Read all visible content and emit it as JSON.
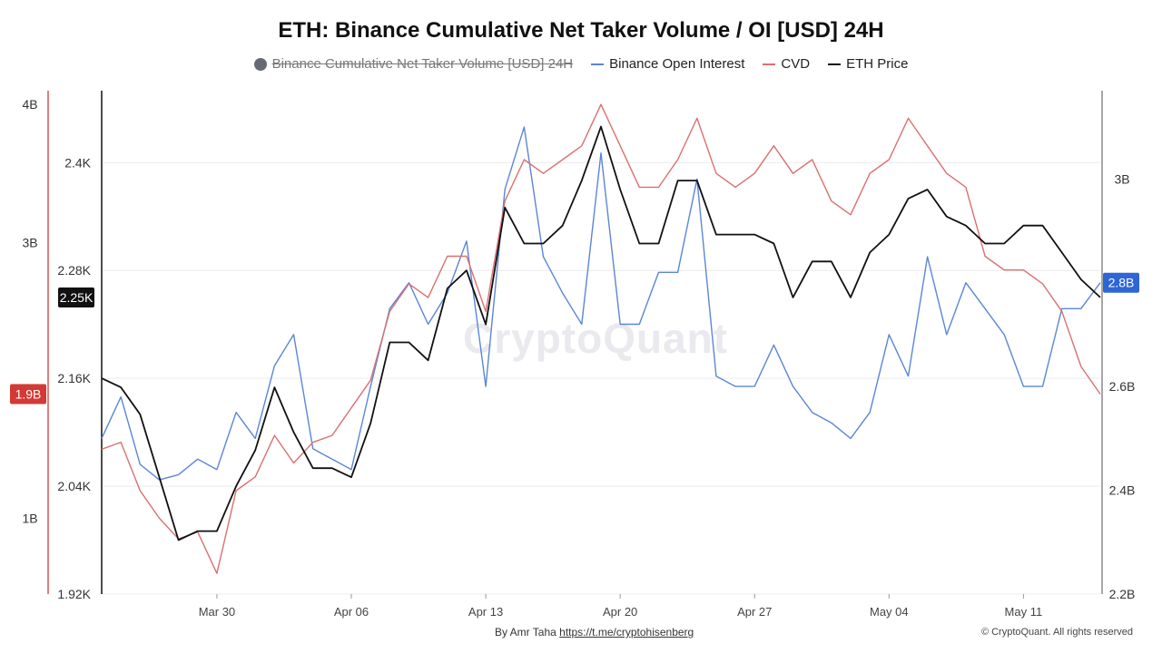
{
  "chart_data": {
    "type": "line",
    "title": "ETH: Binance Cumulative Net Taker Volume / OI [USD] 24H",
    "legend": [
      {
        "name": "Binance Cumulative Net Taker Volume [USD] 24H",
        "color": "#666a73",
        "disabled": true,
        "marker": "dot"
      },
      {
        "name": "Binance Open Interest",
        "color": "#5b86d6",
        "marker": "line"
      },
      {
        "name": "CVD",
        "color": "#d9706f",
        "marker": "line"
      },
      {
        "name": "ETH Price",
        "color": "#111111",
        "marker": "line"
      }
    ],
    "x_ticks": [
      "Mar 30",
      "Apr 06",
      "Apr 13",
      "Apr 20",
      "Apr 27",
      "May 04",
      "May 11"
    ],
    "x_range": [
      "Mar 24",
      "May 15"
    ],
    "axes": {
      "volume": {
        "ticks": [
          "4B",
          "3B",
          "1B"
        ],
        "current": "1.9B",
        "current_color": "#d33a35",
        "ylim": [
          0.45,
          4.1
        ],
        "unit": "B"
      },
      "price": {
        "ticks": [
          "2.4K",
          "2.28K",
          "2.16K",
          "2.04K",
          "1.92K"
        ],
        "current": "2.25K",
        "current_color": "#111111",
        "ylim": [
          1.92,
          2.48
        ],
        "unit": "K"
      },
      "oi": {
        "ticks": [
          "3B",
          "2.8B",
          "2.6B",
          "2.4B",
          "2.2B"
        ],
        "current": "2.8B",
        "current_color": "#2f66d6",
        "ylim": [
          2.2,
          3.17
        ],
        "unit": "B"
      }
    },
    "grid": true,
    "series": [
      {
        "name": "ETH Price",
        "color": "#111111",
        "axis": "price",
        "x": [
          "Mar 24",
          "Mar 25",
          "Mar 26",
          "Mar 27",
          "Mar 28",
          "Mar 29",
          "Mar 30",
          "Mar 31",
          "Apr 01",
          "Apr 02",
          "Apr 03",
          "Apr 04",
          "Apr 05",
          "Apr 06",
          "Apr 07",
          "Apr 08",
          "Apr 09",
          "Apr 10",
          "Apr 11",
          "Apr 12",
          "Apr 13",
          "Apr 14",
          "Apr 15",
          "Apr 16",
          "Apr 17",
          "Apr 18",
          "Apr 19",
          "Apr 20",
          "Apr 21",
          "Apr 22",
          "Apr 23",
          "Apr 24",
          "Apr 25",
          "Apr 26",
          "Apr 27",
          "Apr 28",
          "Apr 29",
          "Apr 30",
          "May 01",
          "May 02",
          "May 03",
          "May 04",
          "May 05",
          "May 06",
          "May 07",
          "May 08",
          "May 09",
          "May 10",
          "May 11",
          "May 12",
          "May 13",
          "May 14",
          "May 15"
        ],
        "values": [
          2.16,
          2.15,
          2.12,
          2.05,
          1.98,
          1.99,
          1.99,
          2.04,
          2.08,
          2.15,
          2.1,
          2.06,
          2.06,
          2.05,
          2.11,
          2.2,
          2.2,
          2.18,
          2.26,
          2.28,
          2.22,
          2.35,
          2.31,
          2.31,
          2.33,
          2.38,
          2.44,
          2.37,
          2.31,
          2.31,
          2.38,
          2.38,
          2.32,
          2.32,
          2.32,
          2.31,
          2.25,
          2.29,
          2.29,
          2.25,
          2.3,
          2.32,
          2.36,
          2.37,
          2.34,
          2.33,
          2.31,
          2.31,
          2.33,
          2.33,
          2.3,
          2.27,
          2.25
        ]
      },
      {
        "name": "CVD",
        "color": "#d9706f",
        "axis": "volume",
        "x": [
          "Mar 24",
          "Mar 25",
          "Mar 26",
          "Mar 27",
          "Mar 28",
          "Mar 29",
          "Mar 30",
          "Mar 31",
          "Apr 01",
          "Apr 02",
          "Apr 03",
          "Apr 04",
          "Apr 05",
          "Apr 06",
          "Apr 07",
          "Apr 08",
          "Apr 09",
          "Apr 10",
          "Apr 11",
          "Apr 12",
          "Apr 13",
          "Apr 14",
          "Apr 15",
          "Apr 16",
          "Apr 17",
          "Apr 18",
          "Apr 19",
          "Apr 20",
          "Apr 21",
          "Apr 22",
          "Apr 23",
          "Apr 24",
          "Apr 25",
          "Apr 26",
          "Apr 27",
          "Apr 28",
          "Apr 29",
          "Apr 30",
          "May 01",
          "May 02",
          "May 03",
          "May 04",
          "May 05",
          "May 06",
          "May 07",
          "May 08",
          "May 09",
          "May 10",
          "May 11",
          "May 12",
          "May 13",
          "May 14",
          "May 15"
        ],
        "values": [
          1.5,
          1.55,
          1.2,
          1.0,
          0.85,
          0.9,
          0.6,
          1.2,
          1.3,
          1.6,
          1.4,
          1.55,
          1.6,
          1.8,
          2.0,
          2.5,
          2.7,
          2.6,
          2.9,
          2.9,
          2.5,
          3.3,
          3.6,
          3.5,
          3.6,
          3.7,
          4.0,
          3.7,
          3.4,
          3.4,
          3.6,
          3.9,
          3.5,
          3.4,
          3.5,
          3.7,
          3.5,
          3.6,
          3.3,
          3.2,
          3.5,
          3.6,
          3.9,
          3.7,
          3.5,
          3.4,
          2.9,
          2.8,
          2.8,
          2.7,
          2.5,
          2.1,
          1.9
        ]
      },
      {
        "name": "Binance Open Interest",
        "color": "#5b86d6",
        "axis": "oi",
        "x": [
          "Mar 24",
          "Mar 25",
          "Mar 26",
          "Mar 27",
          "Mar 28",
          "Mar 29",
          "Mar 30",
          "Mar 31",
          "Apr 01",
          "Apr 02",
          "Apr 03",
          "Apr 04",
          "Apr 05",
          "Apr 06",
          "Apr 07",
          "Apr 08",
          "Apr 09",
          "Apr 10",
          "Apr 11",
          "Apr 12",
          "Apr 13",
          "Apr 14",
          "Apr 15",
          "Apr 16",
          "Apr 17",
          "Apr 18",
          "Apr 19",
          "Apr 20",
          "Apr 21",
          "Apr 22",
          "Apr 23",
          "Apr 24",
          "Apr 25",
          "Apr 26",
          "Apr 27",
          "Apr 28",
          "Apr 29",
          "Apr 30",
          "May 01",
          "May 02",
          "May 03",
          "May 04",
          "May 05",
          "May 06",
          "May 07",
          "May 08",
          "May 09",
          "May 10",
          "May 11",
          "May 12",
          "May 13",
          "May 14",
          "May 15"
        ],
        "values": [
          2.5,
          2.58,
          2.45,
          2.42,
          2.43,
          2.46,
          2.44,
          2.55,
          2.5,
          2.64,
          2.7,
          2.48,
          2.46,
          2.44,
          2.6,
          2.75,
          2.8,
          2.72,
          2.78,
          2.88,
          2.6,
          2.98,
          3.1,
          2.85,
          2.78,
          2.72,
          3.05,
          2.72,
          2.72,
          2.82,
          2.82,
          3.0,
          2.62,
          2.6,
          2.6,
          2.68,
          2.6,
          2.55,
          2.53,
          2.5,
          2.55,
          2.7,
          2.62,
          2.85,
          2.7,
          2.8,
          2.75,
          2.7,
          2.6,
          2.6,
          2.75,
          2.75,
          2.8
        ]
      }
    ]
  },
  "watermark": "CryptoQuant",
  "footer": {
    "byline_prefix": "By Amr Taha ",
    "byline_link": "https://t.me/cryptohisenberg",
    "copyright": "© CryptoQuant. All rights reserved"
  }
}
